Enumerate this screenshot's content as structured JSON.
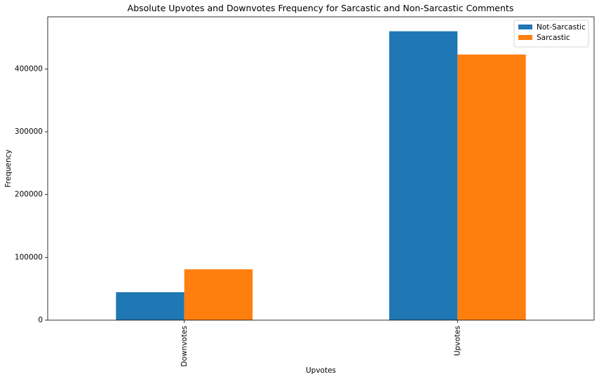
{
  "chart_data": {
    "type": "bar",
    "title": "Absolute Upvotes and Downvotes Frequency for Sarcastic and Non-Sarcastic Comments",
    "xlabel": "Upvotes",
    "ylabel": "Frequency",
    "categories": [
      "Downvotes",
      "Upvotes"
    ],
    "series": [
      {
        "name": "Not-Sarcastic",
        "values": [
          44500,
          460000
        ],
        "color": "#1f77b4"
      },
      {
        "name": "Sarcastic",
        "values": [
          81000,
          423000
        ],
        "color": "#ff7f0e"
      }
    ],
    "ylim": [
      0,
      483000
    ],
    "yticks": [
      0,
      100000,
      200000,
      300000,
      400000
    ],
    "ytick_labels": [
      "0",
      "100000",
      "200000",
      "300000",
      "400000"
    ],
    "grid": false,
    "legend": "top-right"
  }
}
